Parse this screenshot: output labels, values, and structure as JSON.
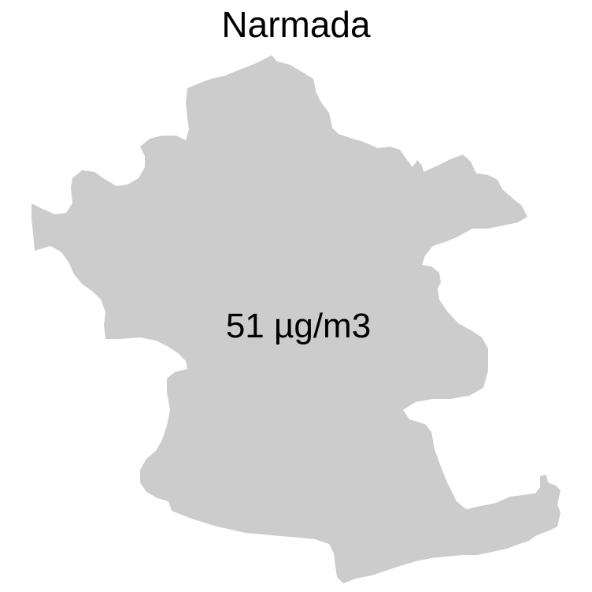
{
  "map": {
    "title": "Narmada",
    "region_name": "Narmada",
    "value_label": "51 µg/m3",
    "region_fill": "#cccccc",
    "text_color": "#000000",
    "background": "#ffffff"
  }
}
